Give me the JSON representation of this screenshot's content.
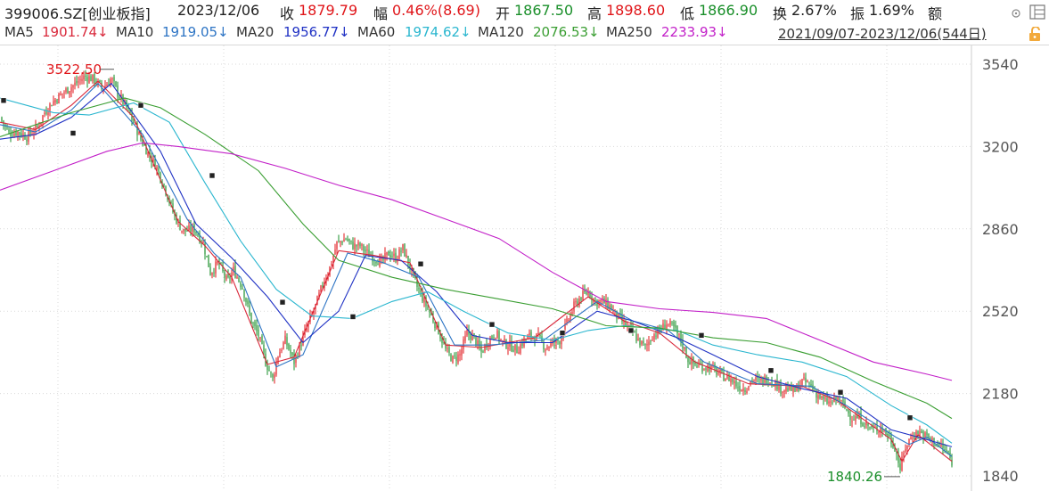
{
  "header": {
    "symbol": "399006.SZ[创业板指]",
    "date": "2023/12/06",
    "close_label": "收",
    "close_value": "1879.79",
    "amp_label": "幅",
    "amp_value": "0.46%(8.69)",
    "open_label": "开",
    "open_value": "1867.50",
    "high_label": "高",
    "high_value": "1898.60",
    "low_label": "低",
    "low_value": "1866.90",
    "turnover_label": "换",
    "turnover_value": "2.67%",
    "swing_label": "振",
    "swing_value": "1.69%",
    "amount_label": "额",
    "icons": [
      "dot-menu-icon",
      "window-icon"
    ]
  },
  "ma_bar": {
    "ma5_label": "MA5",
    "ma5_value": "1901.74↓",
    "ma10_label": "MA10",
    "ma10_value": "1919.05↓",
    "ma20_label": "MA20",
    "ma20_value": "1956.77↓",
    "ma60_label": "MA60",
    "ma60_value": "1974.62↓",
    "ma120_label": "MA120",
    "ma120_value": "2076.53↓",
    "ma250_label": "MA250",
    "ma250_value": "2233.93↓",
    "range": "2021/09/07-2023/12/06(544日)",
    "icons": [
      "unlock-icon"
    ]
  },
  "colors": {
    "up": "#e0161a",
    "down": "#1a8f2a",
    "ma5": "#d9283b",
    "ma10": "#2d74c4",
    "ma20": "#1f31c4",
    "ma60": "#2ab6cf",
    "ma120": "#3a9e32",
    "ma250": "#c21fc8",
    "grid": "#d9d9d9",
    "axis_text": "#555555"
  },
  "chart_data": {
    "type": "candlestick",
    "x": [
      "2021/09/07",
      "2023/12/06"
    ],
    "yticks": [
      3540,
      3200,
      2860,
      2520,
      2180,
      1840
    ],
    "ylim": [
      1810,
      3600
    ],
    "grid": true,
    "annotations": [
      {
        "label": "3522.50",
        "type": "max"
      },
      {
        "label": "1840.26",
        "type": "min"
      }
    ],
    "close_path": [
      [
        0,
        3320
      ],
      [
        10,
        3255
      ],
      [
        20,
        3260
      ],
      [
        30,
        3240
      ],
      [
        42,
        3280
      ],
      [
        50,
        3340
      ],
      [
        58,
        3380
      ],
      [
        70,
        3420
      ],
      [
        85,
        3460
      ],
      [
        95,
        3490
      ],
      [
        105,
        3478
      ],
      [
        115,
        3440
      ],
      [
        125,
        3480
      ],
      [
        132,
        3420
      ],
      [
        142,
        3360
      ],
      [
        150,
        3300
      ],
      [
        158,
        3230
      ],
      [
        165,
        3180
      ],
      [
        175,
        3120
      ],
      [
        185,
        3030
      ],
      [
        195,
        2920
      ],
      [
        205,
        2850
      ],
      [
        218,
        2860
      ],
      [
        228,
        2800
      ],
      [
        236,
        2680
      ],
      [
        245,
        2720
      ],
      [
        255,
        2640
      ],
      [
        262,
        2690
      ],
      [
        272,
        2620
      ],
      [
        282,
        2480
      ],
      [
        290,
        2420
      ],
      [
        298,
        2310
      ],
      [
        306,
        2240
      ],
      [
        312,
        2340
      ],
      [
        320,
        2400
      ],
      [
        330,
        2310
      ],
      [
        338,
        2390
      ],
      [
        346,
        2470
      ],
      [
        354,
        2540
      ],
      [
        362,
        2630
      ],
      [
        370,
        2700
      ],
      [
        378,
        2800
      ],
      [
        388,
        2820
      ],
      [
        396,
        2790
      ],
      [
        404,
        2790
      ],
      [
        412,
        2760
      ],
      [
        420,
        2740
      ],
      [
        428,
        2720
      ],
      [
        436,
        2760
      ],
      [
        444,
        2740
      ],
      [
        452,
        2780
      ],
      [
        460,
        2700
      ],
      [
        468,
        2620
      ],
      [
        476,
        2560
      ],
      [
        484,
        2500
      ],
      [
        492,
        2440
      ],
      [
        500,
        2360
      ],
      [
        508,
        2320
      ],
      [
        516,
        2340
      ],
      [
        524,
        2430
      ],
      [
        532,
        2410
      ],
      [
        540,
        2350
      ],
      [
        548,
        2400
      ],
      [
        556,
        2430
      ],
      [
        564,
        2390
      ],
      [
        572,
        2380
      ],
      [
        580,
        2360
      ],
      [
        588,
        2400
      ],
      [
        596,
        2420
      ],
      [
        604,
        2410
      ],
      [
        612,
        2370
      ],
      [
        620,
        2390
      ],
      [
        628,
        2400
      ],
      [
        636,
        2470
      ],
      [
        644,
        2540
      ],
      [
        652,
        2580
      ],
      [
        660,
        2600
      ],
      [
        668,
        2560
      ],
      [
        676,
        2560
      ],
      [
        684,
        2540
      ],
      [
        692,
        2500
      ],
      [
        700,
        2470
      ],
      [
        708,
        2440
      ],
      [
        716,
        2400
      ],
      [
        724,
        2370
      ],
      [
        732,
        2420
      ],
      [
        740,
        2440
      ],
      [
        748,
        2470
      ],
      [
        756,
        2450
      ],
      [
        764,
        2400
      ],
      [
        772,
        2320
      ],
      [
        780,
        2300
      ],
      [
        788,
        2290
      ],
      [
        796,
        2290
      ],
      [
        804,
        2270
      ],
      [
        812,
        2250
      ],
      [
        820,
        2240
      ],
      [
        828,
        2210
      ],
      [
        836,
        2200
      ],
      [
        844,
        2240
      ],
      [
        852,
        2230
      ],
      [
        860,
        2240
      ],
      [
        868,
        2230
      ],
      [
        876,
        2200
      ],
      [
        884,
        2200
      ],
      [
        892,
        2190
      ],
      [
        900,
        2230
      ],
      [
        908,
        2220
      ],
      [
        916,
        2180
      ],
      [
        924,
        2150
      ],
      [
        932,
        2140
      ],
      [
        940,
        2160
      ],
      [
        948,
        2120
      ],
      [
        956,
        2080
      ],
      [
        964,
        2080
      ],
      [
        972,
        2050
      ],
      [
        980,
        2030
      ],
      [
        988,
        2040
      ],
      [
        996,
        2010
      ],
      [
        1004,
        1960
      ],
      [
        1010,
        1870
      ],
      [
        1016,
        1960
      ],
      [
        1024,
        2010
      ],
      [
        1032,
        2020
      ],
      [
        1040,
        2000
      ],
      [
        1048,
        1980
      ],
      [
        1056,
        1960
      ],
      [
        1064,
        1930
      ],
      [
        1068,
        1880
      ]
    ],
    "series": [
      {
        "name": "MA5",
        "key": "ma5",
        "points": [
          [
            0,
            3300
          ],
          [
            40,
            3270
          ],
          [
            80,
            3370
          ],
          [
            110,
            3470
          ],
          [
            150,
            3320
          ],
          [
            200,
            2890
          ],
          [
            230,
            2790
          ],
          [
            260,
            2660
          ],
          [
            300,
            2300
          ],
          [
            330,
            2330
          ],
          [
            380,
            2770
          ],
          [
            420,
            2750
          ],
          [
            460,
            2720
          ],
          [
            500,
            2380
          ],
          [
            540,
            2370
          ],
          [
            600,
            2410
          ],
          [
            660,
            2580
          ],
          [
            700,
            2480
          ],
          [
            740,
            2430
          ],
          [
            780,
            2310
          ],
          [
            840,
            2220
          ],
          [
            900,
            2210
          ],
          [
            940,
            2150
          ],
          [
            1000,
            1990
          ],
          [
            1012,
            1900
          ],
          [
            1030,
            2010
          ],
          [
            1068,
            1900
          ]
        ]
      },
      {
        "name": "MA10",
        "key": "ma10",
        "points": [
          [
            0,
            3290
          ],
          [
            40,
            3260
          ],
          [
            80,
            3350
          ],
          [
            110,
            3460
          ],
          [
            160,
            3250
          ],
          [
            210,
            2900
          ],
          [
            240,
            2760
          ],
          [
            270,
            2660
          ],
          [
            310,
            2290
          ],
          [
            340,
            2340
          ],
          [
            390,
            2760
          ],
          [
            430,
            2720
          ],
          [
            470,
            2660
          ],
          [
            510,
            2380
          ],
          [
            550,
            2380
          ],
          [
            610,
            2400
          ],
          [
            670,
            2560
          ],
          [
            710,
            2480
          ],
          [
            750,
            2440
          ],
          [
            790,
            2310
          ],
          [
            850,
            2220
          ],
          [
            910,
            2210
          ],
          [
            950,
            2130
          ],
          [
            1005,
            2000
          ],
          [
            1020,
            1970
          ],
          [
            1040,
            2000
          ],
          [
            1068,
            1920
          ]
        ]
      },
      {
        "name": "MA20",
        "key": "ma20",
        "points": [
          [
            0,
            3230
          ],
          [
            40,
            3250
          ],
          [
            80,
            3320
          ],
          [
            125,
            3460
          ],
          [
            180,
            3180
          ],
          [
            220,
            2880
          ],
          [
            260,
            2740
          ],
          [
            300,
            2580
          ],
          [
            340,
            2390
          ],
          [
            380,
            2520
          ],
          [
            410,
            2750
          ],
          [
            450,
            2730
          ],
          [
            490,
            2600
          ],
          [
            530,
            2420
          ],
          [
            570,
            2390
          ],
          [
            620,
            2390
          ],
          [
            670,
            2520
          ],
          [
            710,
            2480
          ],
          [
            760,
            2410
          ],
          [
            800,
            2340
          ],
          [
            850,
            2250
          ],
          [
            900,
            2200
          ],
          [
            950,
            2160
          ],
          [
            1000,
            2030
          ],
          [
            1030,
            2000
          ],
          [
            1068,
            1960
          ]
        ]
      },
      {
        "name": "MA60",
        "key": "ma60",
        "points": [
          [
            0,
            3400
          ],
          [
            60,
            3340
          ],
          [
            100,
            3330
          ],
          [
            150,
            3380
          ],
          [
            190,
            3300
          ],
          [
            230,
            3050
          ],
          [
            270,
            2810
          ],
          [
            310,
            2610
          ],
          [
            350,
            2500
          ],
          [
            395,
            2490
          ],
          [
            440,
            2560
          ],
          [
            480,
            2600
          ],
          [
            520,
            2520
          ],
          [
            570,
            2430
          ],
          [
            620,
            2400
          ],
          [
            660,
            2440
          ],
          [
            700,
            2460
          ],
          [
            760,
            2440
          ],
          [
            800,
            2380
          ],
          [
            850,
            2340
          ],
          [
            900,
            2310
          ],
          [
            950,
            2250
          ],
          [
            1000,
            2130
          ],
          [
            1040,
            2050
          ],
          [
            1068,
            1975
          ]
        ]
      },
      {
        "name": "MA120",
        "key": "ma120",
        "points": [
          [
            0,
            3240
          ],
          [
            80,
            3340
          ],
          [
            140,
            3400
          ],
          [
            180,
            3360
          ],
          [
            230,
            3250
          ],
          [
            290,
            3100
          ],
          [
            340,
            2880
          ],
          [
            380,
            2730
          ],
          [
            440,
            2660
          ],
          [
            500,
            2610
          ],
          [
            560,
            2570
          ],
          [
            620,
            2530
          ],
          [
            680,
            2460
          ],
          [
            740,
            2450
          ],
          [
            800,
            2410
          ],
          [
            860,
            2390
          ],
          [
            920,
            2330
          ],
          [
            980,
            2230
          ],
          [
            1040,
            2140
          ],
          [
            1068,
            2077
          ]
        ]
      },
      {
        "name": "MA250",
        "key": "ma250",
        "points": [
          [
            0,
            3020
          ],
          [
            60,
            3100
          ],
          [
            120,
            3180
          ],
          [
            160,
            3215
          ],
          [
            200,
            3200
          ],
          [
            260,
            3170
          ],
          [
            320,
            3110
          ],
          [
            380,
            3040
          ],
          [
            440,
            2980
          ],
          [
            500,
            2900
          ],
          [
            560,
            2820
          ],
          [
            620,
            2680
          ],
          [
            680,
            2560
          ],
          [
            740,
            2530
          ],
          [
            800,
            2515
          ],
          [
            860,
            2490
          ],
          [
            920,
            2400
          ],
          [
            980,
            2310
          ],
          [
            1040,
            2260
          ],
          [
            1068,
            2234
          ]
        ]
      }
    ],
    "markers": [
      [
        4,
        3390
      ],
      [
        82,
        3255
      ],
      [
        158,
        3370
      ],
      [
        238,
        3080
      ],
      [
        317,
        2557
      ],
      [
        396,
        2497
      ],
      [
        472,
        2715
      ],
      [
        552,
        2465
      ],
      [
        631,
        2430
      ],
      [
        708,
        2440
      ],
      [
        787,
        2420
      ],
      [
        865,
        2275
      ],
      [
        943,
        2185
      ],
      [
        1021,
        2080
      ]
    ]
  }
}
